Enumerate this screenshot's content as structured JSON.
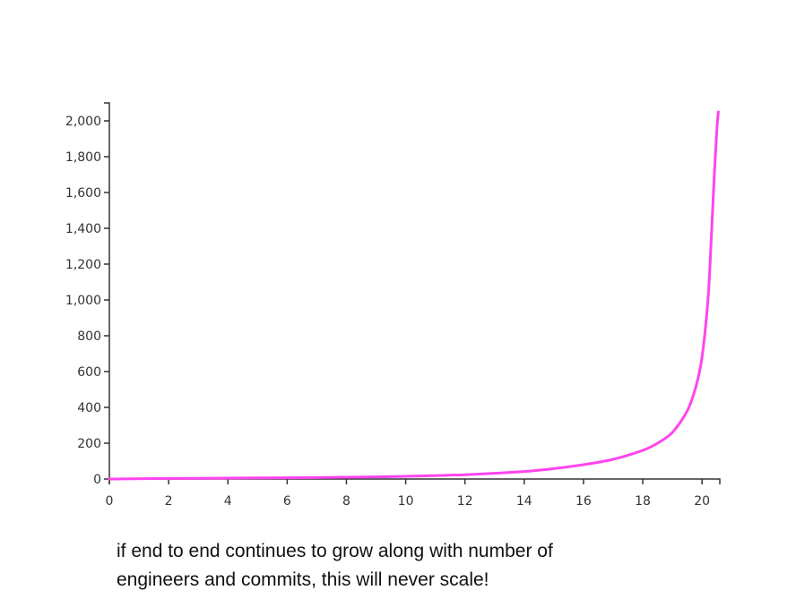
{
  "chart_data": {
    "type": "line",
    "title": "",
    "xlabel": "",
    "ylabel": "",
    "xlim": [
      0,
      20.6
    ],
    "ylim": [
      0,
      2100
    ],
    "x_ticks": [
      0,
      2,
      4,
      6,
      8,
      10,
      12,
      14,
      16,
      18,
      20
    ],
    "x_tick_labels": [
      "0",
      "2",
      "4",
      "6",
      "8",
      "10",
      "12",
      "14",
      "16",
      "18",
      "20"
    ],
    "y_ticks": [
      0,
      200,
      400,
      600,
      800,
      1000,
      1200,
      1400,
      1600,
      1800,
      2000
    ],
    "y_tick_labels": [
      "0",
      "200",
      "400",
      "600",
      "800",
      "1,000",
      "1,200",
      "1,400",
      "1,600",
      "1,800",
      "2,000"
    ],
    "grid": false,
    "legend": "none",
    "line_color": "#ff44ee",
    "series": [
      {
        "x": [
          0,
          2,
          4,
          6,
          8,
          10,
          12,
          14,
          15,
          16,
          17,
          18,
          18.5,
          19,
          19.5,
          19.8,
          20,
          20.2,
          20.3,
          20.4,
          20.5,
          20.55
        ],
        "y": [
          0,
          3,
          5,
          7,
          10,
          15,
          24,
          42,
          58,
          80,
          110,
          160,
          200,
          260,
          380,
          520,
          680,
          1000,
          1300,
          1650,
          1950,
          2050
        ]
      }
    ]
  },
  "caption": {
    "line1": "if end to end continues to grow along with number of",
    "line2": "engineers and commits, this will never scale!"
  }
}
